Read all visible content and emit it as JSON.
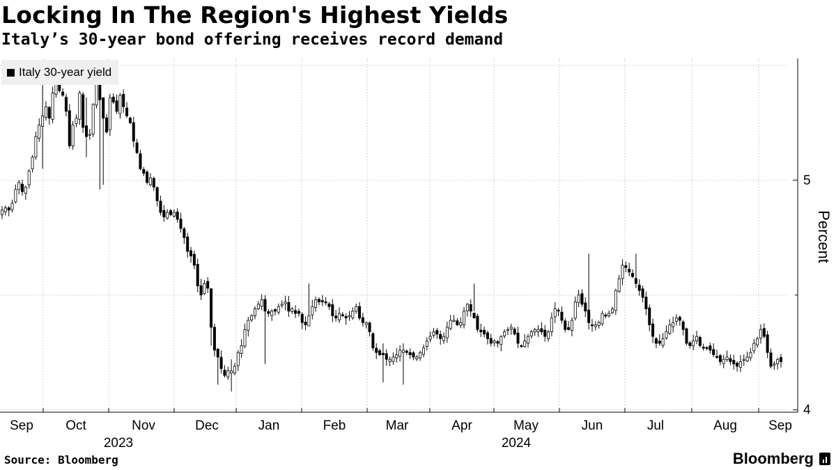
{
  "header": {
    "title": "Locking In The Region's Highest Yields",
    "subtitle": "Italy’s 30-year bond offering receives record demand"
  },
  "legend": {
    "label": "Italy 30-year yield"
  },
  "footer": {
    "source": "Source: Bloomberg",
    "brand": "Bloomberg"
  },
  "colors": {
    "candle": "#000000",
    "grid": "#cfcfcf",
    "legend_bg": "#efefef"
  },
  "chart_data": {
    "type": "candlestick",
    "title": "Locking In The Region's Highest Yields",
    "series_name": "Italy 30-year yield",
    "ylabel": "Percent",
    "ylim": [
      3.99,
      5.53
    ],
    "yticks": [
      4,
      5
    ],
    "y_tick_labels": [
      "4",
      "5"
    ],
    "x_month_labels": [
      "Sep",
      "Oct",
      "Nov",
      "Dec",
      "Jan",
      "Feb",
      "Mar",
      "Apr",
      "May",
      "Jun",
      "Jul",
      "Aug",
      "Sep"
    ],
    "x_year_labels": [
      "2023",
      "2024"
    ],
    "period": "Sep 2023 – Sep 2024 (daily)",
    "closes": [
      4.87,
      4.88,
      4.87,
      4.9,
      4.96,
      4.99,
      4.95,
      4.97,
      5.04,
      5.1,
      5.19,
      5.24,
      5.28,
      5.32,
      5.27,
      5.38,
      5.44,
      5.39,
      5.37,
      5.3,
      5.15,
      5.24,
      5.27,
      5.38,
      5.23,
      5.19,
      5.2,
      5.33,
      5.42,
      5.35,
      5.27,
      5.21,
      5.36,
      5.34,
      5.3,
      5.37,
      5.32,
      5.28,
      5.25,
      5.17,
      5.12,
      5.05,
      5.03,
      4.99,
      5.01,
      4.97,
      4.91,
      4.86,
      4.84,
      4.86,
      4.85,
      4.86,
      4.83,
      4.79,
      4.75,
      4.69,
      4.67,
      4.63,
      4.54,
      4.5,
      4.55,
      4.53,
      4.36,
      4.26,
      4.23,
      4.18,
      4.15,
      4.17,
      4.17,
      4.19,
      4.25,
      4.28,
      4.35,
      4.39,
      4.41,
      4.44,
      4.46,
      4.48,
      4.43,
      4.42,
      4.43,
      4.43,
      4.45,
      4.46,
      4.47,
      4.43,
      4.44,
      4.42,
      4.42,
      4.38,
      4.37,
      4.41,
      4.45,
      4.48,
      4.47,
      4.47,
      4.47,
      4.45,
      4.41,
      4.4,
      4.42,
      4.41,
      4.4,
      4.41,
      4.43,
      4.45,
      4.4,
      4.38,
      4.38,
      4.34,
      4.27,
      4.25,
      4.24,
      4.24,
      4.22,
      4.22,
      4.23,
      4.24,
      4.26,
      4.26,
      4.25,
      4.24,
      4.23,
      4.23,
      4.25,
      4.27,
      4.3,
      4.32,
      4.34,
      4.33,
      4.31,
      4.32,
      4.36,
      4.39,
      4.39,
      4.37,
      4.38,
      4.43,
      4.46,
      4.43,
      4.4,
      4.35,
      4.34,
      4.33,
      4.31,
      4.29,
      4.3,
      4.29,
      4.32,
      4.34,
      4.35,
      4.36,
      4.33,
      4.29,
      4.28,
      4.3,
      4.32,
      4.34,
      4.35,
      4.35,
      4.34,
      4.32,
      4.34,
      4.4,
      4.44,
      4.43,
      4.39,
      4.35,
      4.35,
      4.39,
      4.47,
      4.5,
      4.46,
      4.43,
      4.38,
      4.37,
      4.37,
      4.38,
      4.42,
      4.41,
      4.42,
      4.44,
      4.52,
      4.57,
      4.63,
      4.62,
      4.6,
      4.58,
      4.55,
      4.52,
      4.49,
      4.44,
      4.37,
      4.32,
      4.29,
      4.29,
      4.31,
      4.34,
      4.37,
      4.38,
      4.4,
      4.39,
      4.35,
      4.29,
      4.28,
      4.3,
      4.32,
      4.28,
      4.27,
      4.27,
      4.26,
      4.24,
      4.23,
      4.21,
      4.22,
      4.23,
      4.21,
      4.2,
      4.19,
      4.21,
      4.22,
      4.23,
      4.25,
      4.29,
      4.31,
      4.35,
      4.32,
      4.25,
      4.19,
      4.2,
      4.22,
      4.21
    ],
    "weekly_extremes": [
      {
        "i": 12,
        "high": 5.47,
        "low": 5.05
      },
      {
        "i": 25,
        "high": 5.36,
        "low": 5.1
      },
      {
        "i": 29,
        "high": 5.37,
        "low": 4.96
      },
      {
        "i": 30,
        "high": 5.3,
        "low": 4.98
      },
      {
        "i": 62,
        "high": 4.45,
        "low": 4.28
      },
      {
        "i": 64,
        "high": 4.27,
        "low": 4.11
      },
      {
        "i": 68,
        "high": 4.22,
        "low": 4.08
      },
      {
        "i": 78,
        "high": 4.5,
        "low": 4.2
      },
      {
        "i": 91,
        "high": 4.55,
        "low": 4.38
      },
      {
        "i": 113,
        "high": 4.29,
        "low": 4.12
      },
      {
        "i": 119,
        "high": 4.29,
        "low": 4.11
      },
      {
        "i": 140,
        "high": 4.55,
        "low": 4.43
      },
      {
        "i": 174,
        "high": 4.68,
        "low": 4.35
      },
      {
        "i": 188,
        "high": 4.68,
        "low": 4.53
      },
      {
        "i": 232,
        "high": 4.37,
        "low": 4.23
      },
      {
        "i": 234,
        "high": 4.3,
        "low": 4.17
      }
    ]
  }
}
